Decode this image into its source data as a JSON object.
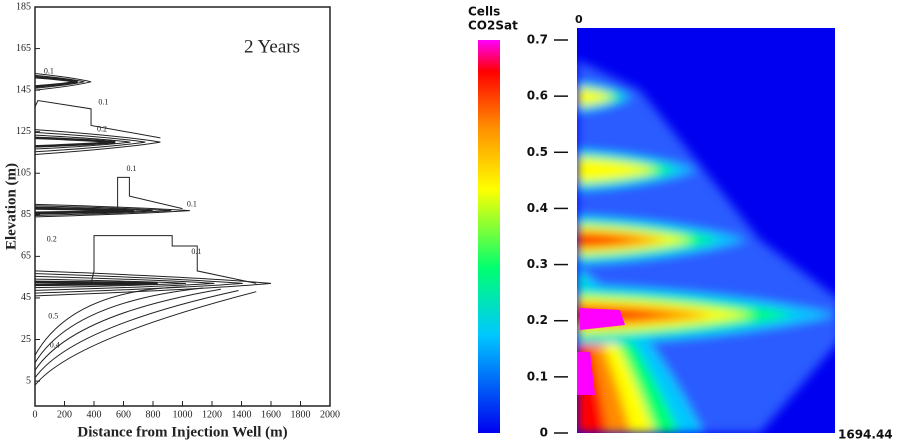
{
  "chart_data": [
    {
      "type": "contour",
      "annotation": "2 Years",
      "xlabel": "Distance from Injection Well (m)",
      "ylabel": "Elevation (m)",
      "xlim": [
        0,
        2000
      ],
      "xticks": [
        0,
        200,
        400,
        600,
        800,
        1000,
        1200,
        1400,
        1600,
        1800,
        2000
      ],
      "ylim": [
        -7,
        185
      ],
      "yticks": [
        5,
        25,
        45,
        65,
        85,
        105,
        125,
        145,
        165,
        185
      ],
      "contour_labels": [
        "0.1",
        "0.1",
        "0.2",
        "0.1",
        "0.1",
        "0.2",
        "0.1",
        "0.5",
        "0.4"
      ],
      "color": "#222222"
    },
    {
      "type": "heatmap",
      "colorbar_title": [
        "Cells",
        "CO2Sat"
      ],
      "clim": [
        0,
        0.7
      ],
      "cticks": [
        0,
        0.1,
        0.2,
        0.3,
        0.4,
        0.5,
        0.6,
        0.7
      ],
      "xlim": [
        0,
        1694.44
      ],
      "xticks": [
        0,
        1694.44
      ],
      "colormap": [
        "#0000f0",
        "#00c8ff",
        "#00ff70",
        "#ffff00",
        "#ff8c00",
        "#ff0000",
        "#ff00ff"
      ]
    }
  ]
}
